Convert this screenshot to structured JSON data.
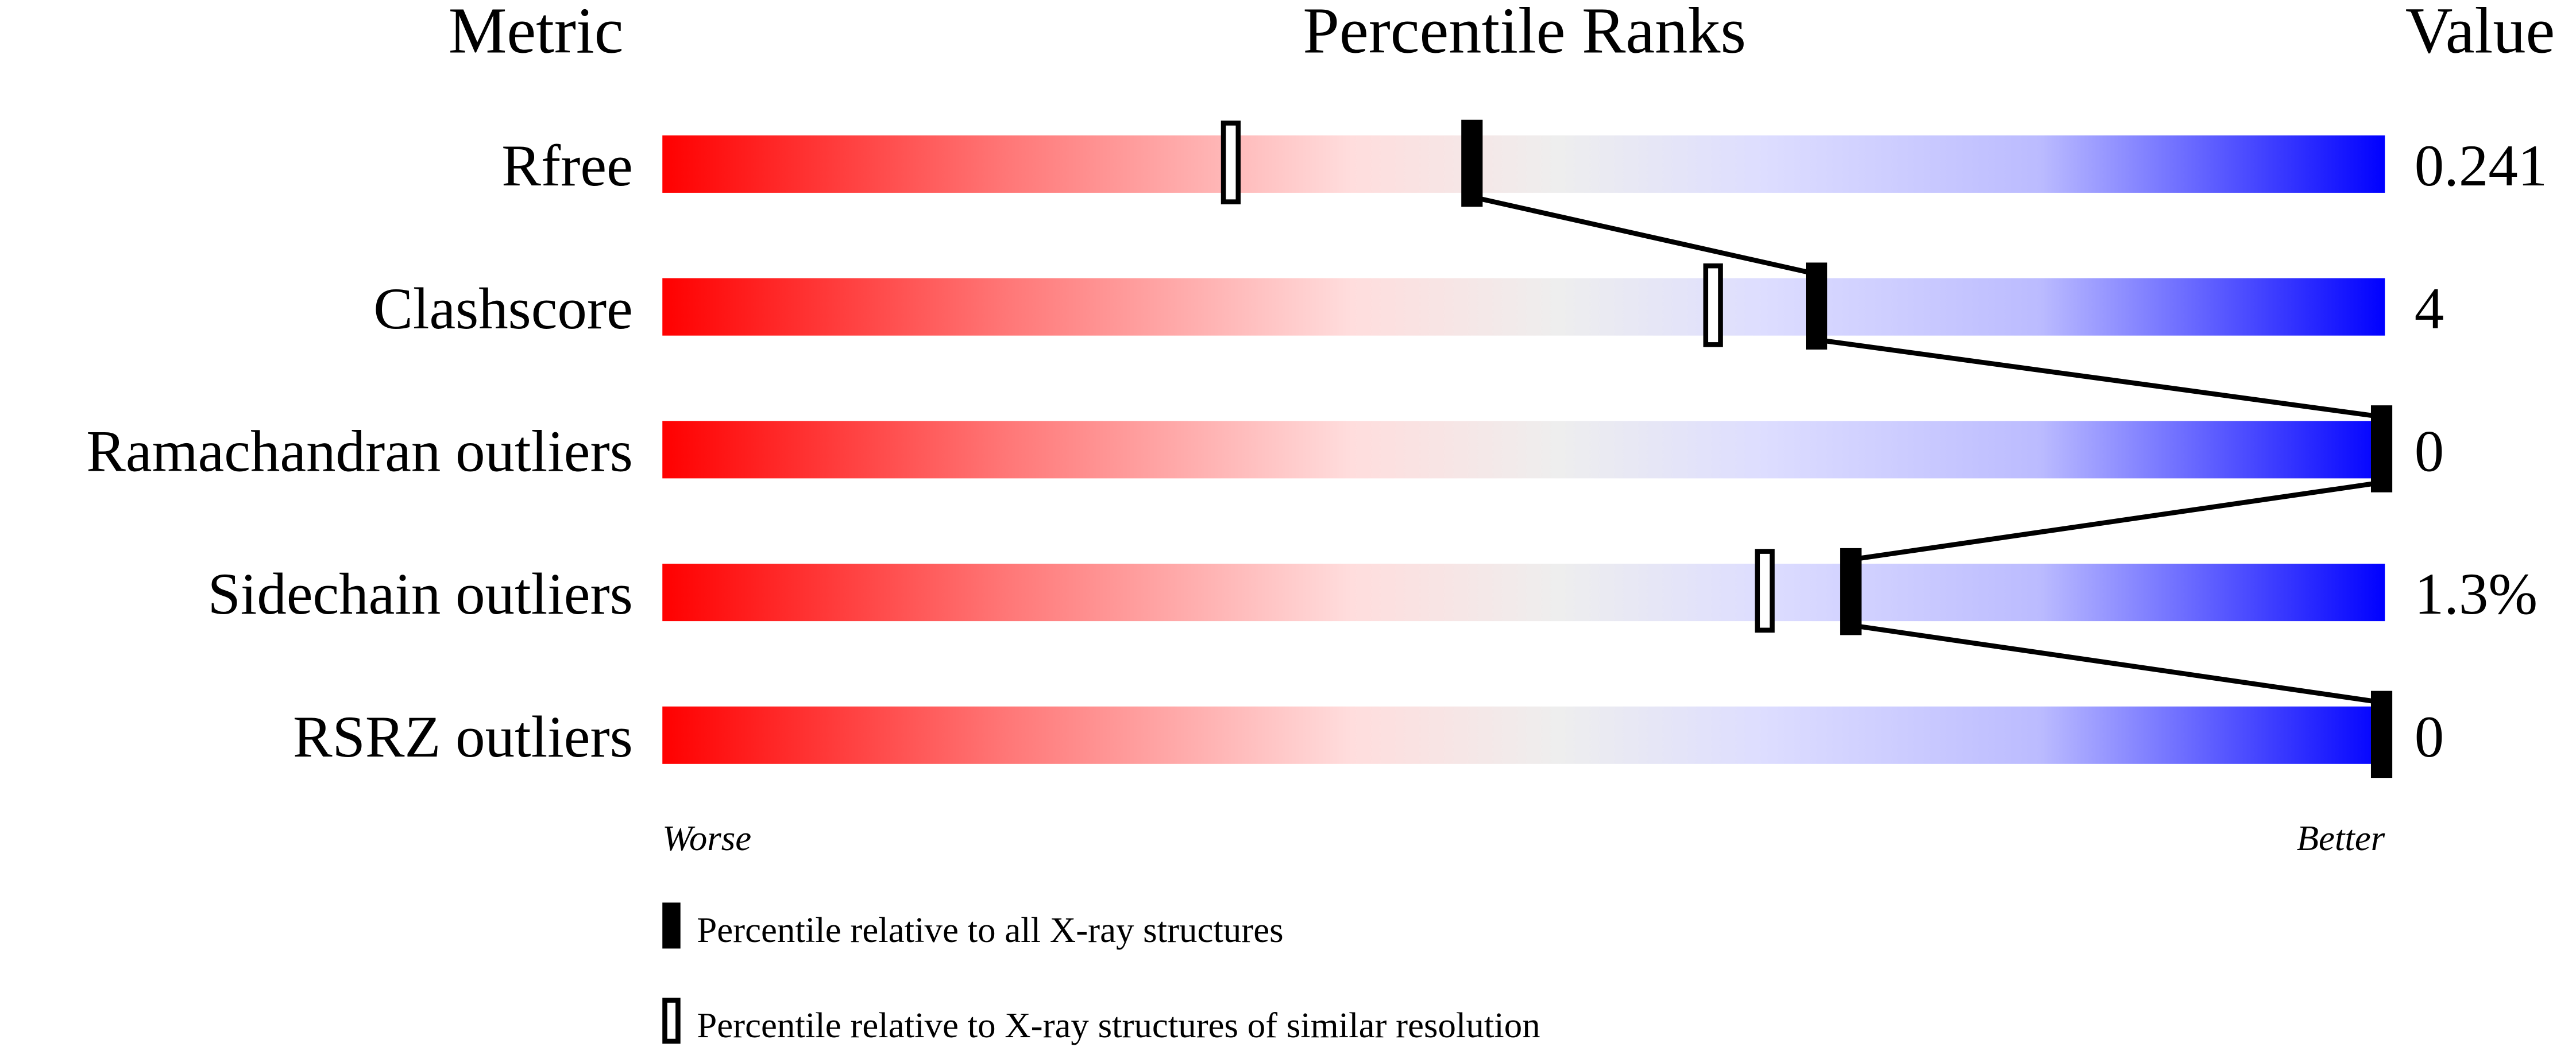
{
  "chart_data": {
    "type": "bar",
    "headers": {
      "metric": "Metric",
      "percentile": "Percentile Ranks",
      "value": "Value"
    },
    "xlim": [
      0,
      100
    ],
    "axis_labels": {
      "left": "Worse",
      "right": "Better"
    },
    "colors": {
      "worse": "#ff0000",
      "neutral": "#eeeeee",
      "better": "#0000ff",
      "marker": "#000000"
    },
    "metrics": [
      {
        "name": "Rfree",
        "value": "0.241",
        "percentile_all": 47,
        "percentile_similar": 33
      },
      {
        "name": "Clashscore",
        "value": "4",
        "percentile_all": 67,
        "percentile_similar": 61
      },
      {
        "name": "Ramachandran outliers",
        "value": "0",
        "percentile_all": 100,
        "percentile_similar": null
      },
      {
        "name": "Sidechain outliers",
        "value": "1.3%",
        "percentile_all": 69,
        "percentile_similar": 64
      },
      {
        "name": "RSRZ outliers",
        "value": "0",
        "percentile_all": 100,
        "percentile_similar": null
      }
    ],
    "legend": {
      "position": "bottom",
      "all": "Percentile relative to all X-ray structures",
      "similar": "Percentile relative to X-ray structures of similar resolution"
    }
  }
}
